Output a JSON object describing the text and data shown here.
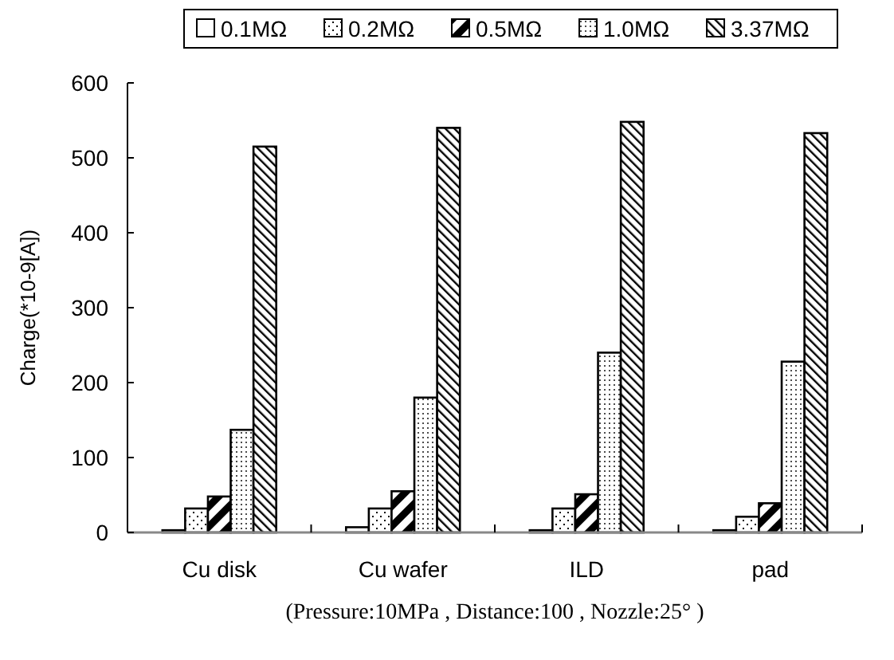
{
  "chart_data": {
    "type": "bar",
    "ylabel": "Charge(*10-9[A])",
    "xlabel": "(Pressure:10MPa , Distance:100 , Nozzle:25°  )",
    "categories": [
      "Cu disk",
      "Cu wafer",
      "ILD",
      "pad"
    ],
    "series": [
      {
        "name": "0.1MΩ",
        "color": "#000000",
        "values": [
          3,
          7,
          3,
          3
        ]
      },
      {
        "name": "0.2MΩ",
        "color": "#000000",
        "values": [
          32,
          32,
          32,
          21
        ]
      },
      {
        "name": "0.5MΩ",
        "color": "#000000",
        "values": [
          48,
          55,
          51,
          39
        ]
      },
      {
        "name": "1.0MΩ",
        "color": "#000000",
        "values": [
          137,
          180,
          240,
          228
        ]
      },
      {
        "name": "3.37MΩ",
        "color": "#000000",
        "values": [
          515,
          540,
          548,
          533
        ]
      }
    ],
    "ylim": [
      0,
      600
    ],
    "yticks": [
      0,
      100,
      200,
      300,
      400,
      500,
      600
    ],
    "grid": false,
    "legend": "top"
  }
}
